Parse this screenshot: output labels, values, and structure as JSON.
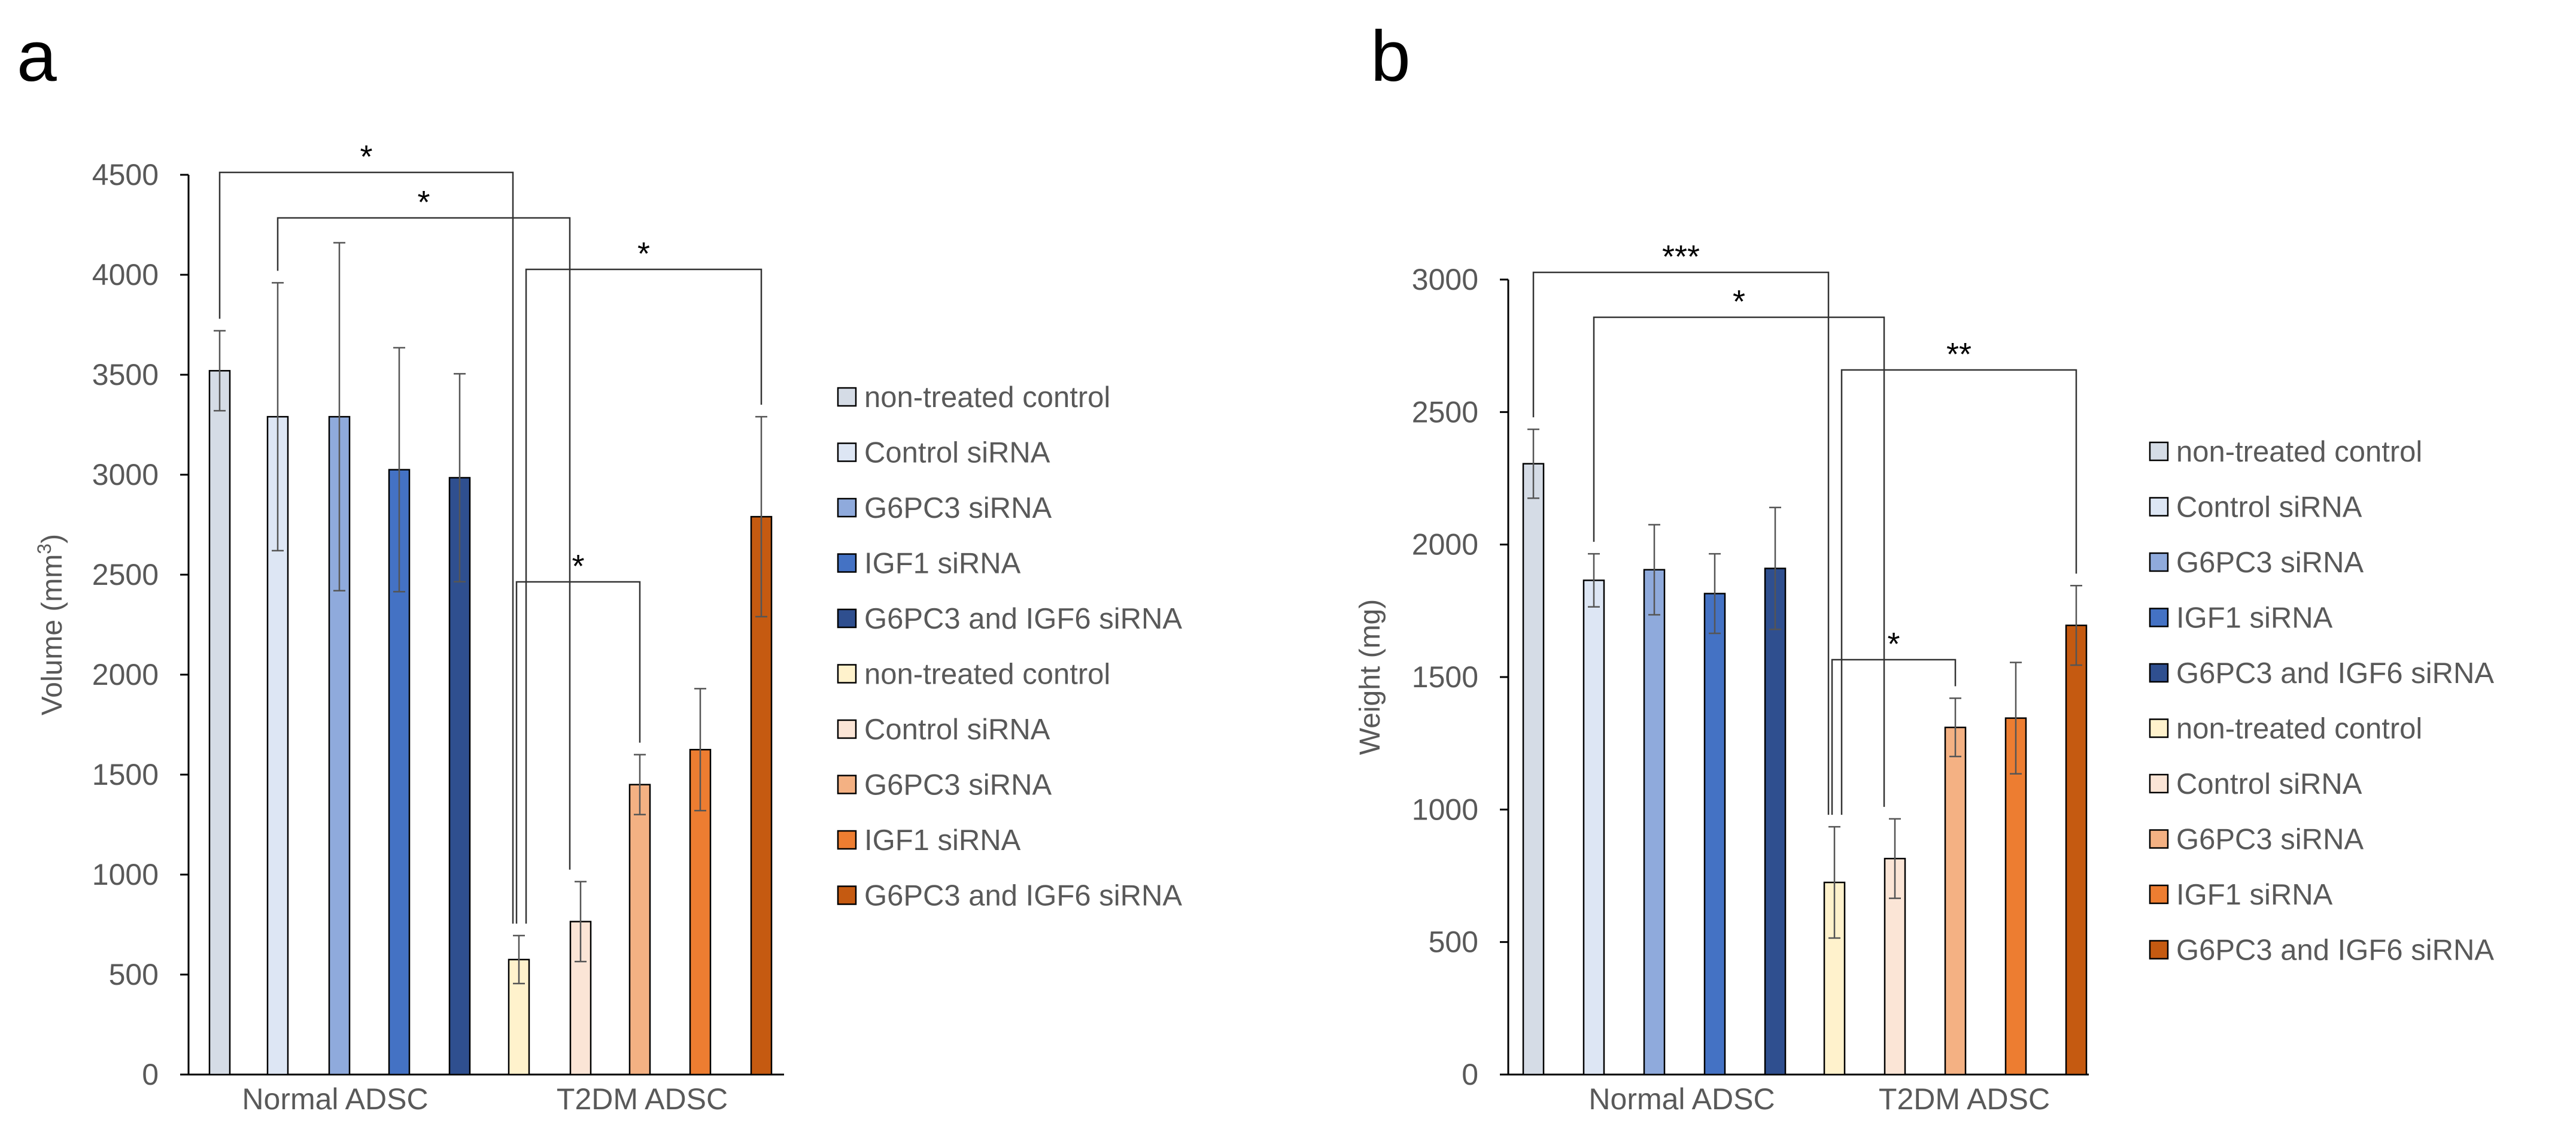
{
  "panel_labels": [
    "a",
    "b"
  ],
  "chart_data": [
    {
      "type": "bar",
      "panel": "a",
      "ylabel": "Volume (mm",
      "ylabel_sup": "3",
      "ylabel_close": ")",
      "ylim": [
        0,
        4500
      ],
      "yticks": [
        0,
        500,
        1000,
        1500,
        2000,
        2500,
        3000,
        3500,
        4000,
        4500
      ],
      "groups": [
        "Normal ADSC",
        "T2DM ADSC"
      ],
      "series": [
        {
          "name": "non-treated control",
          "color": "#d5dce6",
          "values": [
            3520,
            575
          ],
          "errors": [
            200,
            120
          ]
        },
        {
          "name": "Control siRNA",
          "color": "#dde6f4",
          "values": [
            3290,
            765
          ],
          "errors": [
            670,
            200
          ]
        },
        {
          "name": "G6PC3 siRNA",
          "color": "#8faadc",
          "values": [
            3290,
            1450
          ],
          "errors": [
            870,
            150
          ]
        },
        {
          "name": "IGF1 siRNA",
          "color": "#4472c4",
          "values": [
            3025,
            1625
          ],
          "errors": [
            610,
            305
          ]
        },
        {
          "name": "G6PC3 and IGF6 siRNA",
          "color": "#2f4f8f",
          "values": [
            2985,
            2790
          ],
          "errors": [
            520,
            500
          ]
        }
      ],
      "t2dm_colors": [
        "#fff2cc",
        "#fbe5d6",
        "#f4b183",
        "#ed7d31",
        "#c55a11"
      ],
      "legend": [
        "non-treated control",
        "Control siRNA",
        "G6PC3 siRNA",
        "IGF1 siRNA",
        "G6PC3 and IGF6 siRNA",
        "non-treated control",
        "Control siRNA",
        "G6PC3 siRNA",
        "IGF1 siRNA",
        "G6PC3 and IGF6 siRNA"
      ],
      "significance": [
        {
          "label": "*",
          "from": "Normal ADSC / non-treated control",
          "to": "T2DM ADSC / non-treated control"
        },
        {
          "label": "*",
          "from": "Normal ADSC / Control siRNA",
          "to": "T2DM ADSC / Control siRNA"
        },
        {
          "label": "*",
          "from": "T2DM ADSC / non-treated control",
          "to": "T2DM ADSC / G6PC3 and IGF6 siRNA"
        },
        {
          "label": "*",
          "from": "T2DM ADSC / non-treated control",
          "to": "T2DM ADSC / G6PC3 siRNA"
        }
      ]
    },
    {
      "type": "bar",
      "panel": "b",
      "ylabel": "Weight (mg)",
      "ylim": [
        0,
        3000
      ],
      "yticks": [
        0,
        500,
        1000,
        1500,
        2000,
        2500,
        3000
      ],
      "groups": [
        "Normal ADSC",
        "T2DM ADSC"
      ],
      "series": [
        {
          "name": "non-treated control",
          "color": "#d5dce6",
          "values": [
            2305,
            725
          ],
          "errors": [
            130,
            210
          ]
        },
        {
          "name": "Control siRNA",
          "color": "#dde6f4",
          "values": [
            1865,
            815
          ],
          "errors": [
            100,
            150
          ]
        },
        {
          "name": "G6PC3 siRNA",
          "color": "#8faadc",
          "values": [
            1905,
            1310
          ],
          "errors": [
            170,
            110
          ]
        },
        {
          "name": "IGF1 siRNA",
          "color": "#4472c4",
          "values": [
            1815,
            1345
          ],
          "errors": [
            150,
            210
          ]
        },
        {
          "name": "G6PC3 and IGF6 siRNA",
          "color": "#2f4f8f",
          "values": [
            1910,
            1695
          ],
          "errors": [
            230,
            150
          ]
        }
      ],
      "t2dm_colors": [
        "#fff2cc",
        "#fbe5d6",
        "#f4b183",
        "#ed7d31",
        "#c55a11"
      ],
      "legend": [
        "non-treated control",
        "Control siRNA",
        "G6PC3 siRNA",
        "IGF1 siRNA",
        "G6PC3 and IGF6 siRNA",
        "non-treated control",
        "Control siRNA",
        "G6PC3 siRNA",
        "IGF1 siRNA",
        "G6PC3 and IGF6 siRNA"
      ],
      "significance": [
        {
          "label": "***",
          "from": "Normal ADSC / non-treated control",
          "to": "T2DM ADSC / non-treated control"
        },
        {
          "label": "*",
          "from": "Normal ADSC / Control siRNA",
          "to": "T2DM ADSC / Control siRNA"
        },
        {
          "label": "**",
          "from": "T2DM ADSC / non-treated control",
          "to": "T2DM ADSC / G6PC3 and IGF6 siRNA"
        },
        {
          "label": "*",
          "from": "T2DM ADSC / non-treated control",
          "to": "T2DM ADSC / G6PC3 siRNA"
        }
      ]
    }
  ]
}
